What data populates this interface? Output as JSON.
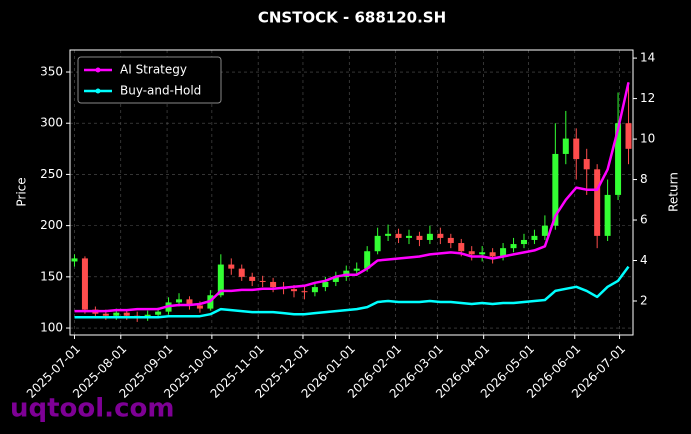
{
  "chart_data": {
    "type": "candlestick",
    "title": "CNSTOCK - 688120.SH",
    "ylabel": "Price",
    "y2label": "Return",
    "up_color": "#33ff33",
    "down_color": "#ff4d4d",
    "grid": true,
    "legend": "upper left",
    "x": [
      "2025-07-01",
      "2025-07-08",
      "2025-07-15",
      "2025-07-22",
      "2025-07-29",
      "2025-08-05",
      "2025-08-12",
      "2025-08-19",
      "2025-08-26",
      "2025-09-02",
      "2025-09-09",
      "2025-09-16",
      "2025-09-23",
      "2025-09-30",
      "2025-10-07",
      "2025-10-14",
      "2025-10-21",
      "2025-10-28",
      "2025-11-04",
      "2025-11-11",
      "2025-11-18",
      "2025-11-25",
      "2025-12-02",
      "2025-12-09",
      "2025-12-16",
      "2025-12-23",
      "2025-12-30",
      "2026-01-06",
      "2026-01-13",
      "2026-01-20",
      "2026-01-27",
      "2026-02-03",
      "2026-02-10",
      "2026-02-17",
      "2026-02-24",
      "2026-03-03",
      "2026-03-10",
      "2026-03-17",
      "2026-03-24",
      "2026-03-31",
      "2026-04-07",
      "2026-04-14",
      "2026-04-21",
      "2026-04-28",
      "2026-05-05",
      "2026-05-12",
      "2026-05-19",
      "2026-05-26",
      "2026-06-02",
      "2026-06-09",
      "2026-06-16",
      "2026-06-23",
      "2026-06-30",
      "2026-07-07"
    ],
    "open": [
      165,
      168,
      118,
      114,
      112,
      115,
      112,
      110,
      113,
      116,
      125,
      128,
      122,
      119,
      132,
      162,
      158,
      150,
      146,
      145,
      140,
      138,
      136,
      135,
      140,
      145,
      150,
      156,
      158,
      175,
      190,
      192,
      188,
      190,
      186,
      192,
      188,
      183,
      175,
      172,
      174,
      170,
      178,
      182,
      186,
      190,
      200,
      270,
      285,
      265,
      255,
      190,
      230,
      300
    ],
    "high": [
      172,
      170,
      121,
      118,
      119,
      118,
      116,
      117,
      120,
      130,
      134,
      131,
      126,
      137,
      172,
      168,
      162,
      154,
      151,
      149,
      145,
      142,
      141,
      145,
      150,
      155,
      161,
      164,
      180,
      198,
      201,
      197,
      196,
      194,
      200,
      198,
      192,
      187,
      180,
      180,
      178,
      183,
      188,
      192,
      196,
      210,
      300,
      312,
      295,
      275,
      260,
      245,
      330,
      340
    ],
    "low": [
      160,
      114,
      110,
      108,
      108,
      108,
      106,
      107,
      110,
      113,
      121,
      118,
      115,
      117,
      130,
      152,
      146,
      141,
      140,
      135,
      133,
      130,
      128,
      131,
      136,
      141,
      146,
      151,
      155,
      172,
      185,
      183,
      182,
      180,
      182,
      182,
      178,
      170,
      166,
      165,
      163,
      166,
      174,
      178,
      182,
      186,
      196,
      260,
      245,
      230,
      178,
      185,
      225,
      260
    ],
    "close": [
      168,
      118,
      114,
      112,
      115,
      112,
      110,
      113,
      116,
      125,
      128,
      122,
      119,
      132,
      162,
      158,
      150,
      146,
      145,
      140,
      138,
      136,
      135,
      140,
      145,
      150,
      156,
      158,
      175,
      190,
      192,
      188,
      190,
      186,
      192,
      188,
      183,
      175,
      172,
      174,
      170,
      178,
      182,
      186,
      190,
      200,
      270,
      285,
      265,
      255,
      190,
      230,
      300,
      275
    ],
    "series": [
      {
        "name": "AI Strategy",
        "color": "#ff00ff",
        "axis": "y2",
        "values": [
          1.5,
          1.5,
          1.5,
          1.5,
          1.55,
          1.55,
          1.6,
          1.6,
          1.6,
          1.75,
          1.8,
          1.8,
          1.85,
          2.0,
          2.5,
          2.5,
          2.55,
          2.55,
          2.6,
          2.6,
          2.65,
          2.7,
          2.75,
          2.9,
          3.0,
          3.2,
          3.3,
          3.3,
          3.6,
          4.0,
          4.05,
          4.1,
          4.15,
          4.2,
          4.3,
          4.35,
          4.4,
          4.35,
          4.2,
          4.2,
          4.1,
          4.2,
          4.3,
          4.4,
          4.5,
          4.7,
          6.2,
          7.0,
          7.6,
          7.5,
          7.5,
          8.5,
          10.5,
          12.8
        ]
      },
      {
        "name": "Buy-and-Hold",
        "color": "#00ffff",
        "axis": "y2",
        "values": [
          1.2,
          1.2,
          1.2,
          1.2,
          1.2,
          1.2,
          1.2,
          1.2,
          1.2,
          1.25,
          1.25,
          1.25,
          1.25,
          1.35,
          1.6,
          1.55,
          1.5,
          1.45,
          1.45,
          1.45,
          1.4,
          1.35,
          1.35,
          1.4,
          1.45,
          1.5,
          1.55,
          1.6,
          1.7,
          1.95,
          2.0,
          1.95,
          1.95,
          1.95,
          2.0,
          1.95,
          1.95,
          1.9,
          1.85,
          1.9,
          1.85,
          1.9,
          1.9,
          1.95,
          2.0,
          2.05,
          2.5,
          2.6,
          2.7,
          2.5,
          2.2,
          2.7,
          3.0,
          3.7
        ]
      }
    ],
    "xlim": [
      "2025-06-28",
      "2026-07-10"
    ],
    "xticks": [
      "2025-07-01",
      "2025-08-01",
      "2025-09-01",
      "2025-10-01",
      "2025-11-01",
      "2025-12-01",
      "2026-01-01",
      "2026-02-01",
      "2026-03-01",
      "2026-04-01",
      "2026-05-01",
      "2026-06-01",
      "2026-07-01"
    ],
    "ylim": [
      93.2,
      371.5
    ],
    "yticks": [
      100,
      150,
      200,
      250,
      300,
      350
    ],
    "y2lim": [
      0.32,
      14.4
    ],
    "y2ticks": [
      2,
      4,
      6,
      8,
      10,
      12,
      14
    ]
  },
  "watermark": "uqtool.com"
}
